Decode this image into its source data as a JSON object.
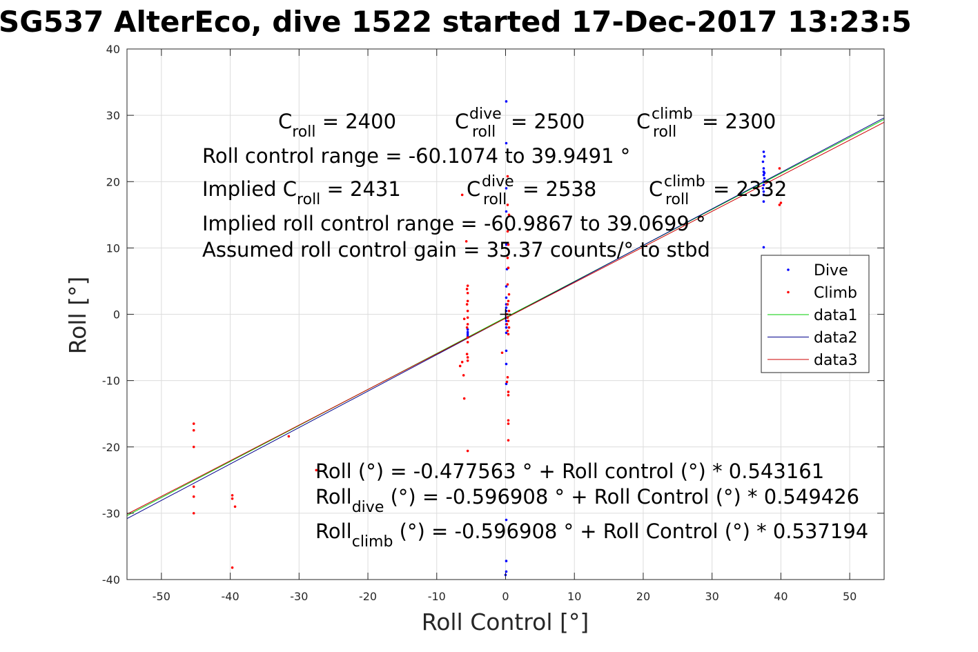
{
  "chart_data": {
    "type": "scatter",
    "title": "SG537 AlterEco, dive 1522 started 17-Dec-2017 13:23:5",
    "xlabel": "Roll Control [°]",
    "ylabel": "Roll [°]",
    "xlim": [
      -55,
      55
    ],
    "ylim": [
      -40,
      40
    ],
    "xticks": [
      -50,
      -40,
      -30,
      -20,
      -10,
      0,
      10,
      20,
      30,
      40,
      50
    ],
    "yticks": [
      -40,
      -30,
      -20,
      -10,
      0,
      10,
      20,
      30,
      40
    ],
    "grid": true,
    "legend_position": "right",
    "series": [
      {
        "name": "Dive",
        "kind": "points",
        "color": "#0000ff",
        "points": [
          [
            0.1,
            32.1
          ],
          [
            0.1,
            25.8
          ],
          [
            0.1,
            19.0
          ],
          [
            0.1,
            15.5
          ],
          [
            0.1,
            10.5
          ],
          [
            0.2,
            6.8
          ],
          [
            0.1,
            4.2
          ],
          [
            0.1,
            2.5
          ],
          [
            0.1,
            1.5
          ],
          [
            0.1,
            1.0
          ],
          [
            0.1,
            0.5
          ],
          [
            0.1,
            0.0
          ],
          [
            0.1,
            -0.5
          ],
          [
            0.1,
            -1.0
          ],
          [
            0.1,
            -1.5
          ],
          [
            0.1,
            -2.0
          ],
          [
            0.1,
            -2.8
          ],
          [
            0.1,
            -5.5
          ],
          [
            0.1,
            -7.5
          ],
          [
            0.1,
            -10.5
          ],
          [
            0.1,
            -31.0
          ],
          [
            0.1,
            -37.2
          ],
          [
            0.1,
            -38.8
          ],
          [
            0.0,
            -39.3
          ],
          [
            -5.5,
            -2.3
          ],
          [
            -5.5,
            -2.7
          ],
          [
            -5.5,
            -3.0
          ],
          [
            -5.5,
            -3.3
          ],
          [
            37.5,
            24.5
          ],
          [
            37.6,
            23.8
          ],
          [
            37.4,
            23.0
          ],
          [
            37.5,
            22.0
          ],
          [
            37.5,
            21.5
          ],
          [
            37.5,
            21.0
          ],
          [
            37.6,
            20.5
          ],
          [
            37.5,
            20.0
          ],
          [
            37.5,
            19.5
          ],
          [
            37.4,
            19.0
          ],
          [
            37.5,
            18.5
          ],
          [
            37.5,
            18.0
          ],
          [
            37.5,
            17.0
          ],
          [
            37.6,
            21.3
          ],
          [
            37.5,
            10.1
          ]
        ]
      },
      {
        "name": "Climb",
        "kind": "points",
        "color": "#ff0000",
        "points": [
          [
            -45.3,
            -16.5
          ],
          [
            -45.3,
            -17.5
          ],
          [
            -45.3,
            -20.0
          ],
          [
            -45.3,
            -26.0
          ],
          [
            -45.3,
            -27.5
          ],
          [
            -45.3,
            -30.0
          ],
          [
            -39.7,
            -27.3
          ],
          [
            -39.7,
            -27.8
          ],
          [
            -39.3,
            -29.0
          ],
          [
            -39.7,
            -38.2
          ],
          [
            -31.5,
            -18.4
          ],
          [
            -27.5,
            -23.5
          ],
          [
            -6.3,
            18.0
          ],
          [
            -5.7,
            11.0
          ],
          [
            -5.5,
            4.3
          ],
          [
            -5.6,
            3.8
          ],
          [
            -5.5,
            3.2
          ],
          [
            -5.5,
            2.0
          ],
          [
            -5.6,
            1.5
          ],
          [
            -5.5,
            0.5
          ],
          [
            -5.5,
            -0.5
          ],
          [
            -6.0,
            -0.7
          ],
          [
            -5.5,
            -1.5
          ],
          [
            -5.6,
            -2.0
          ],
          [
            -5.5,
            -3.5
          ],
          [
            -5.5,
            -4.2
          ],
          [
            -5.6,
            -6.0
          ],
          [
            -5.5,
            -6.5
          ],
          [
            -5.5,
            -7.0
          ],
          [
            -6.3,
            -7.2
          ],
          [
            -6.6,
            -7.8
          ],
          [
            -6.1,
            -9.2
          ],
          [
            -6.0,
            -12.7
          ],
          [
            -5.5,
            -20.6
          ],
          [
            0.3,
            20.8
          ],
          [
            0.3,
            16.5
          ],
          [
            0.5,
            15.0
          ],
          [
            0.3,
            12.5
          ],
          [
            0.4,
            10.5
          ],
          [
            0.3,
            8.5
          ],
          [
            0.4,
            7.0
          ],
          [
            0.3,
            4.5
          ],
          [
            0.5,
            3.0
          ],
          [
            0.4,
            2.0
          ],
          [
            0.3,
            1.5
          ],
          [
            0.5,
            0.5
          ],
          [
            0.2,
            0.0
          ],
          [
            0.3,
            -0.5
          ],
          [
            0.4,
            -1.0
          ],
          [
            0.2,
            -1.5
          ],
          [
            0.5,
            -2.0
          ],
          [
            0.3,
            -2.5
          ],
          [
            0.4,
            -3.0
          ],
          [
            -0.5,
            -5.8
          ],
          [
            0.3,
            -9.5
          ],
          [
            0.2,
            -10.2
          ],
          [
            0.4,
            -11.7
          ],
          [
            0.4,
            -12.2
          ],
          [
            0.4,
            -16.0
          ],
          [
            0.4,
            -16.5
          ],
          [
            0.4,
            -19.0
          ],
          [
            39.8,
            22.0
          ],
          [
            39.8,
            16.5
          ],
          [
            40.0,
            16.8
          ]
        ]
      },
      {
        "name": "data1",
        "kind": "line",
        "color": "#00cc00",
        "x": [
          -55,
          55
        ],
        "y": [
          -30.352,
          29.396
        ]
      },
      {
        "name": "data2",
        "kind": "line",
        "color": "#00008b",
        "x": [
          -55,
          55
        ],
        "y": [
          -30.816,
          29.622
        ]
      },
      {
        "name": "data3",
        "kind": "line",
        "color": "#cc0000",
        "x": [
          -55,
          55
        ],
        "y": [
          -30.143,
          28.948
        ]
      }
    ],
    "origin_marker": [
      0,
      0
    ]
  },
  "annotations": {
    "line1": {
      "c_roll": "C",
      "c_roll_sub": "roll",
      "c_roll_val": " = 2400",
      "c_dive": "C",
      "c_dive_sup": "dive",
      "c_dive_sub": "roll",
      "c_dive_val": " = 2500",
      "c_climb": "C",
      "c_climb_sup": "climb",
      "c_climb_sub": "roll",
      "c_climb_val": " = 2300"
    },
    "range": "Roll control range = -60.1074 to 39.9491 °",
    "line3": {
      "prefix": "Implied C",
      "sub": "roll",
      "val": " = 2431",
      "c_dive": "C",
      "c_dive_sup": "dive",
      "c_dive_sub": "roll",
      "c_dive_val": " = 2538",
      "c_climb": "C",
      "c_climb_sup": "climb",
      "c_climb_sub": "roll",
      "c_climb_val": " = 2332"
    },
    "implied_range": "Implied roll control range = -60.9867 to 39.0699 °",
    "gain": "Assumed roll control gain = 35.37 counts/° to stbd",
    "fit1": "Roll (°) = -0.477563 ° + Roll control (°) * 0.543161",
    "fit2_a": "Roll",
    "fit2_sub": "dive",
    "fit2_b": " (°) = -0.596908 ° + Roll Control (°) * 0.549426",
    "fit3_a": "Roll",
    "fit3_sub": "climb",
    "fit3_b": " (°) = -0.596908 ° + Roll Control (°) * 0.537194"
  }
}
